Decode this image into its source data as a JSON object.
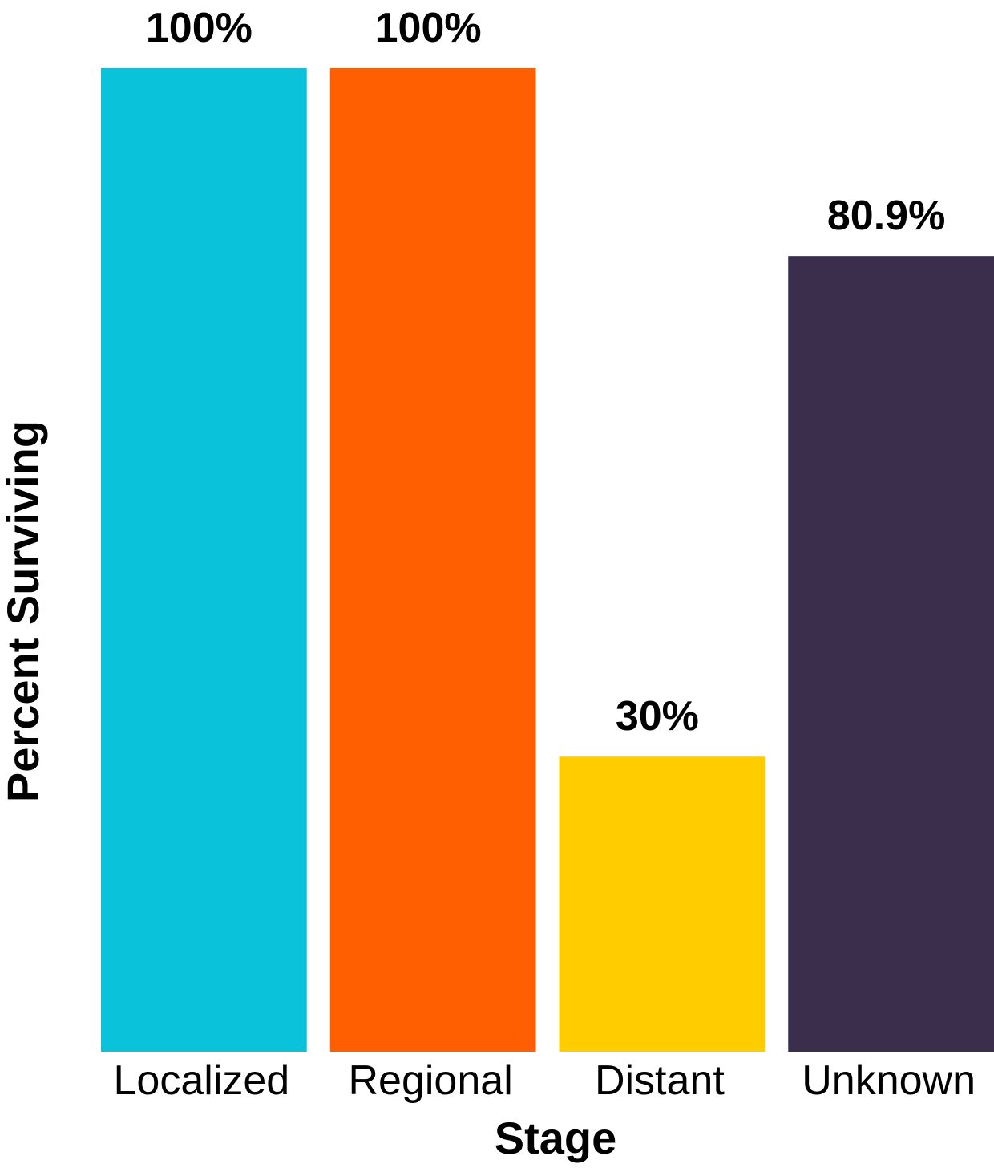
{
  "chart_data": {
    "type": "bar",
    "categories": [
      "Localized",
      "Regional",
      "Distant",
      "Unknown"
    ],
    "values": [
      100,
      100,
      30,
      80.9
    ],
    "value_labels": [
      "100%",
      "100%",
      "30%",
      "80.9%"
    ],
    "colors": [
      "#0BC2DB",
      "#FF5F00",
      "#FFCC00",
      "#3B2D4C"
    ],
    "xlabel": "Stage",
    "ylabel": "Percent Surviving",
    "ylim": [
      0,
      100
    ],
    "grid": false,
    "legend": "none"
  }
}
